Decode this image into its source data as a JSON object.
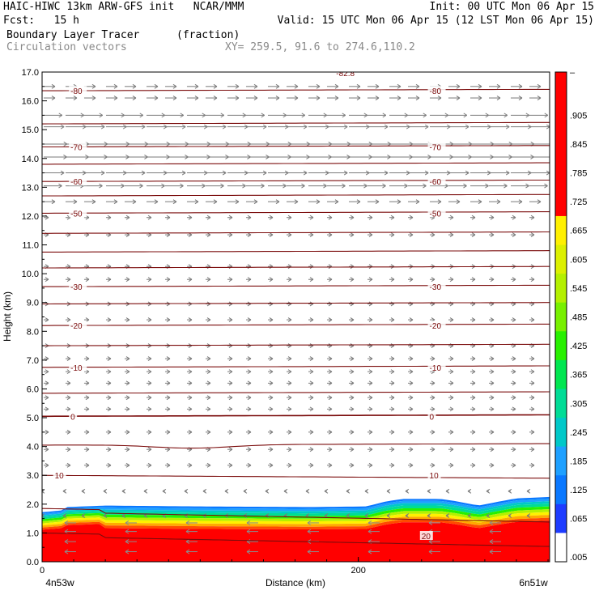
{
  "header": {
    "line1_left": "HAIC-HIWC 13km ARW-GFS init   NCAR/MMM",
    "line1_right": "Init: 00 UTC Mon 06 Apr 15",
    "line2_left": "Fcst:   15 h",
    "line2_right": "Valid: 15 UTC Mon 06 Apr 15 (12 LST Mon 06 Apr 15)",
    "field_name": "Boundary Layer Tracer",
    "field_units": "(fraction)",
    "overlay_name": "Circulation vectors",
    "xy_text": "XY= 259.5, 91.6 to 274.6,110.2"
  },
  "chart_data": {
    "type": "cross-section",
    "title": "Boundary Layer Tracer",
    "xlabel": "Distance (km)",
    "ylabel": "Height (km)",
    "xlim": [
      0,
      321
    ],
    "ylim": [
      0,
      17
    ],
    "x_ticks": [
      {
        "value": 0,
        "label": "0"
      },
      {
        "value": 200,
        "label": "200"
      }
    ],
    "x_end_labels": {
      "left": "4n53w",
      "right": "6n51w"
    },
    "y_ticks": [
      "0.0",
      "1.0",
      "2.0",
      "3.0",
      "4.0",
      "5.0",
      "6.0",
      "7.0",
      "8.0",
      "9.0",
      "10.0",
      "11.0",
      "12.0",
      "13.0",
      "14.0",
      "15.0",
      "16.0",
      "17.0"
    ],
    "colorbar": {
      "labels": [
        "–",
        ".905",
        ".845",
        ".785",
        ".725",
        ".665",
        ".605",
        ".545",
        ".485",
        ".425",
        ".365",
        ".305",
        ".245",
        ".185",
        ".125",
        ".065",
        ".005"
      ],
      "colors": [
        "#ffffff",
        "#1e3cff",
        "#0a78ff",
        "#1ea0ff",
        "#00c8c8",
        "#00dc96",
        "#00e650",
        "#28f000",
        "#78f000",
        "#b4f000",
        "#dcf000",
        "#fff000",
        "#ffd200",
        "#ffaa00",
        "#ff7800",
        "#ff4b00",
        "#ff0000"
      ]
    },
    "temperature_contours": [
      {
        "label": "-80",
        "height": 16.35
      },
      {
        "label": "-70",
        "height": 14.4
      },
      {
        "label": "-60",
        "height": 13.2
      },
      {
        "label": "-50",
        "height": 12.1
      },
      {
        "label": "-30",
        "height": 9.55
      },
      {
        "label": "-20",
        "height": 8.2
      },
      {
        "label": "-10",
        "height": 6.75
      },
      {
        "label": "0",
        "height": 5.05
      },
      {
        "label": "10",
        "height": 3.0
      },
      {
        "label": "20",
        "height": 0.9
      }
    ],
    "top_contour_label": "-82.8",
    "tracer_top_km": [
      [
        0,
        1.72
      ],
      [
        12,
        1.78
      ],
      [
        16,
        1.9
      ],
      [
        40,
        1.95
      ],
      [
        100,
        1.92
      ],
      [
        170,
        1.9
      ],
      [
        205,
        1.92
      ],
      [
        218,
        2.1
      ],
      [
        228,
        2.18
      ],
      [
        252,
        2.18
      ],
      [
        262,
        2.1
      ],
      [
        276,
        1.95
      ],
      [
        290,
        2.1
      ],
      [
        300,
        2.2
      ],
      [
        321,
        2.25
      ]
    ],
    "vector_rows_km": [
      1.6,
      2.45,
      3.35,
      3.9,
      4.5,
      5.3,
      5.7,
      6.2,
      6.6,
      7.05,
      7.5,
      8.4,
      8.95,
      9.8,
      10.25,
      11.35,
      11.95,
      12.5,
      13.05,
      13.5,
      14.05,
      14.5,
      15.1,
      15.5,
      16.1,
      16.5
    ]
  }
}
